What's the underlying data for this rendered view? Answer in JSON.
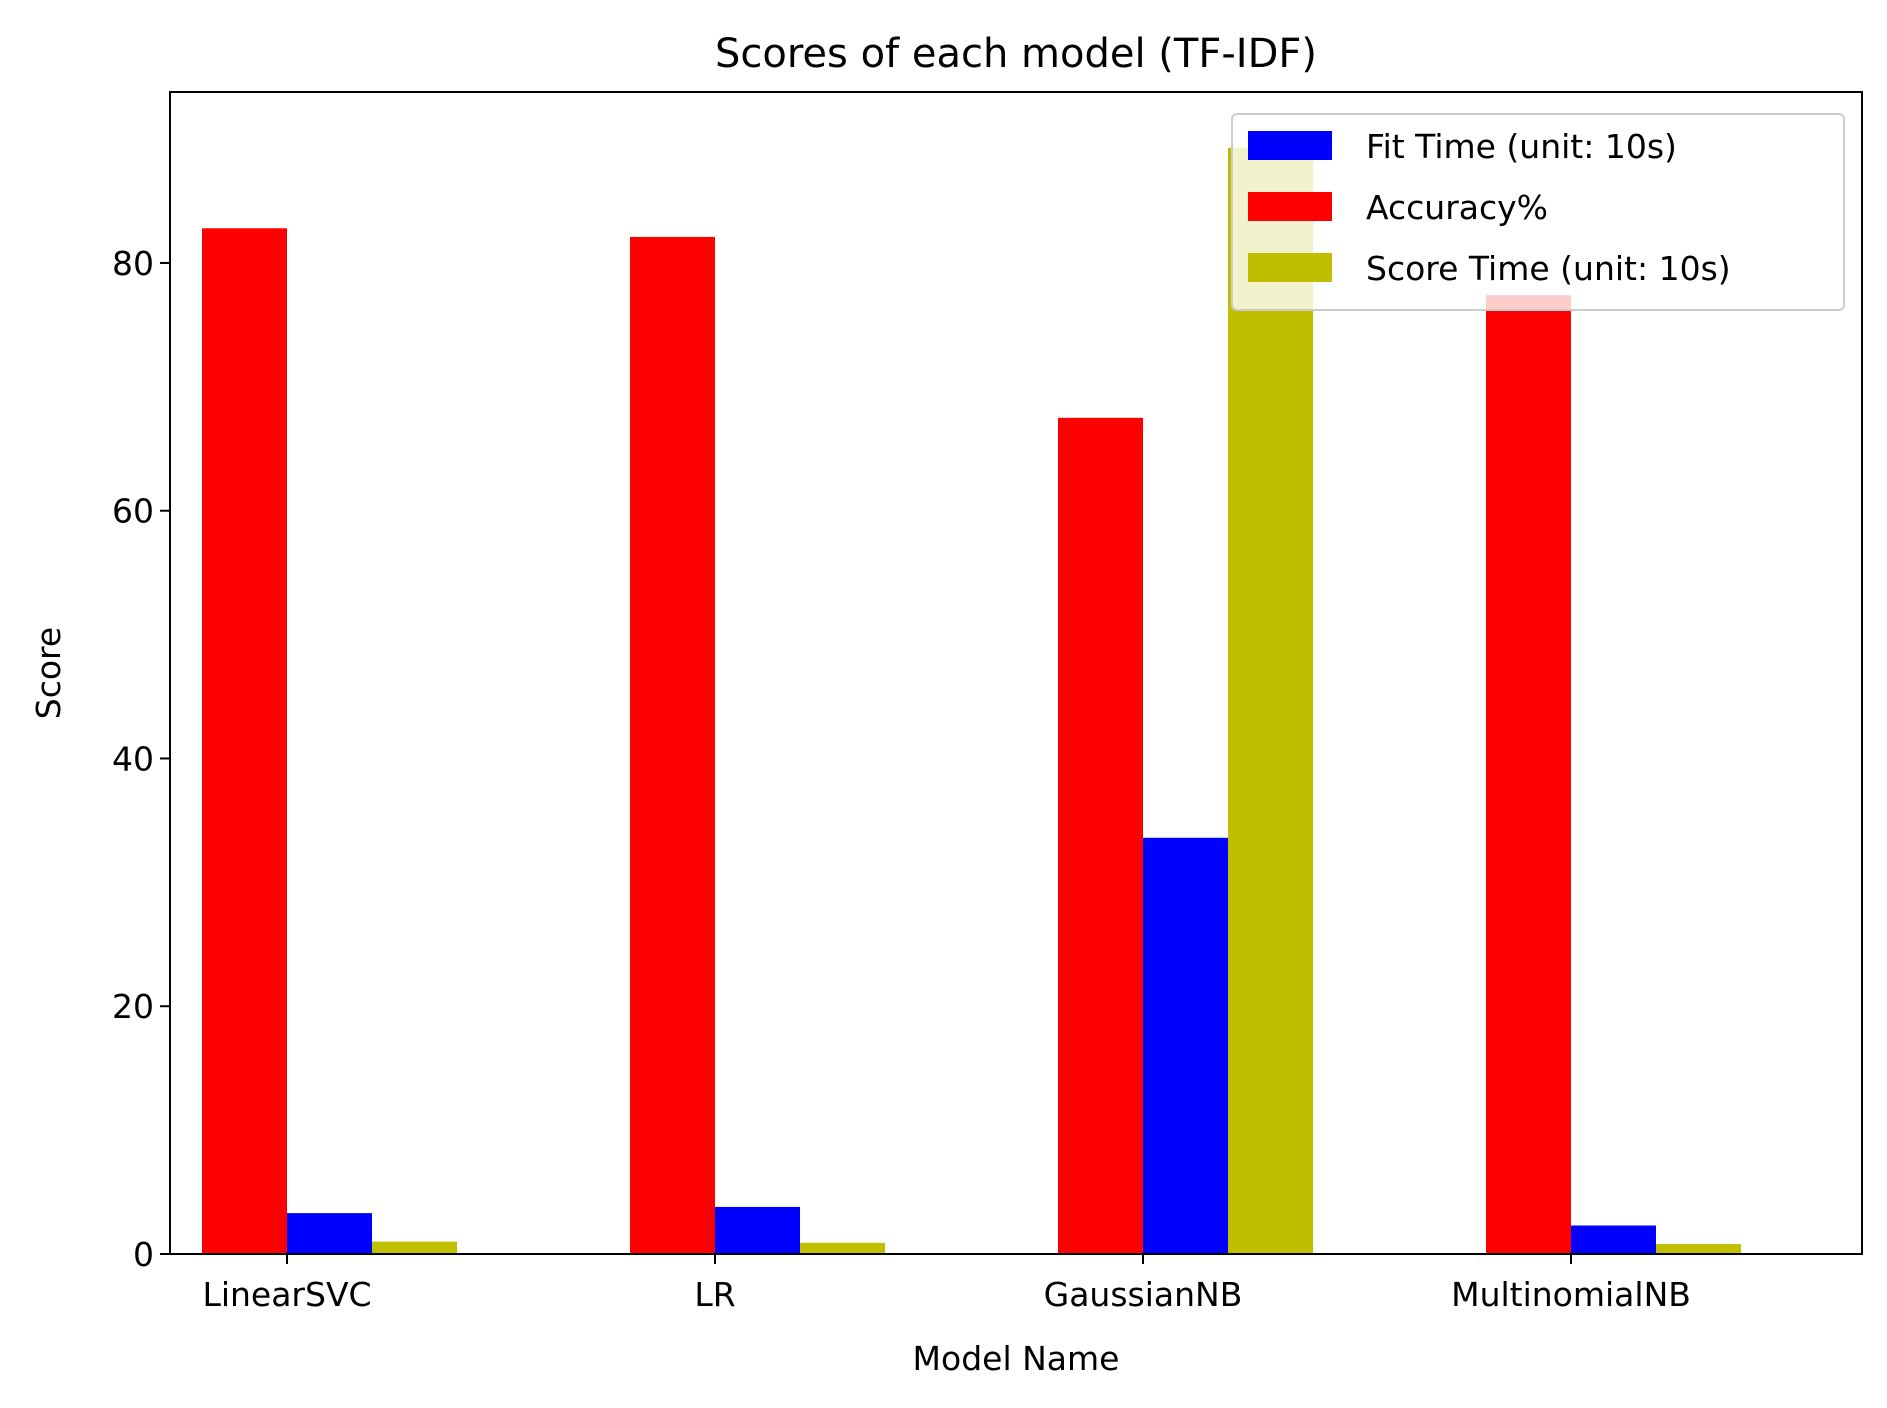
{
  "chart_data": {
    "type": "bar",
    "title": "Scores of each model (TF-IDF)",
    "xlabel": "Model Name",
    "ylabel": "Score",
    "categories": [
      "LinearSVC",
      "LR",
      "GaussianNB",
      "MultinomialNB"
    ],
    "series": [
      {
        "name": "Accuracy%",
        "color": "#ff0000",
        "values": [
          82.8,
          82.1,
          67.5,
          77.4
        ]
      },
      {
        "name": "Fit Time (unit: 10s)",
        "color": "#0000ff",
        "values": [
          3.3,
          3.8,
          33.6,
          2.3
        ]
      },
      {
        "name": "Score Time (unit: 10s)",
        "color": "#bfbf00",
        "values": [
          1.0,
          0.9,
          89.3,
          0.8
        ]
      }
    ],
    "legend_order": [
      "Fit Time (unit: 10s)",
      "Accuracy%",
      "Score Time (unit: 10s)"
    ],
    "legend_position": "top-right",
    "ylim": [
      0,
      93.8
    ],
    "yticks": [
      0,
      20,
      40,
      60,
      80
    ],
    "grid": false
  }
}
